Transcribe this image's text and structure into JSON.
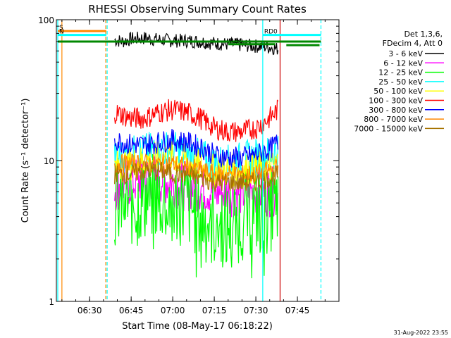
{
  "chart_data": {
    "type": "line",
    "title": "RHESSI Observing Summary Count Rates",
    "xlabel": "Start Time (08-May-17 06:18:22)",
    "ylabel": "Count Rate (s⁻¹ detector⁻¹)",
    "y_scale": "log",
    "ylim": [
      1,
      100
    ],
    "xlim": [
      "06:18",
      "08:00"
    ],
    "x_ticks": [
      "06:30",
      "06:45",
      "07:00",
      "07:15",
      "07:30",
      "07:45"
    ],
    "y_ticks": [
      "1",
      "10",
      "100"
    ],
    "legend_header": [
      "Det 1,3,6,",
      "FDecim 4, Att 0"
    ],
    "legend_position": "right",
    "timestamp": "31-Aug-2022 23:55",
    "series": [
      {
        "name": "3 - 6 keV",
        "color": "#000000",
        "points": [
          [
            "06:39",
            72
          ],
          [
            "06:42",
            70
          ],
          [
            "06:45",
            73
          ],
          [
            "06:50",
            74
          ],
          [
            "06:55",
            72
          ],
          [
            "07:00",
            71
          ],
          [
            "07:05",
            71
          ],
          [
            "07:10",
            70
          ],
          [
            "07:15",
            68
          ],
          [
            "07:20",
            67
          ],
          [
            "07:25",
            66
          ],
          [
            "07:30",
            65
          ],
          [
            "07:35",
            64
          ],
          [
            "07:38",
            62
          ]
        ]
      },
      {
        "name": "6 - 12 keV",
        "color": "#ff00ff",
        "points": [
          [
            "06:39",
            6.5
          ],
          [
            "06:45",
            7
          ],
          [
            "06:50",
            7.5
          ],
          [
            "06:55",
            7.5
          ],
          [
            "07:00",
            7
          ],
          [
            "07:05",
            6.5
          ],
          [
            "07:10",
            6.5
          ],
          [
            "07:15",
            6
          ],
          [
            "07:20",
            6
          ],
          [
            "07:25",
            6
          ],
          [
            "07:30",
            6
          ],
          [
            "07:35",
            6
          ],
          [
            "07:38",
            6
          ]
        ]
      },
      {
        "name": "12 - 25 keV",
        "color": "#00ff00",
        "points": [
          [
            "06:39",
            5
          ],
          [
            "06:45",
            5
          ],
          [
            "06:50",
            5.5
          ],
          [
            "06:55",
            5.5
          ],
          [
            "07:00",
            5
          ],
          [
            "07:05",
            5
          ],
          [
            "07:10",
            4
          ],
          [
            "07:15",
            3.5
          ],
          [
            "07:20",
            3.5
          ],
          [
            "07:25",
            4
          ],
          [
            "07:30",
            4.5
          ],
          [
            "07:35",
            4.5
          ],
          [
            "07:38",
            5
          ]
        ]
      },
      {
        "name": "25 - 50 keV",
        "color": "#00ffff",
        "points": [
          [
            "06:39",
            10
          ],
          [
            "06:45",
            11
          ],
          [
            "06:50",
            11.5
          ],
          [
            "06:55",
            12
          ],
          [
            "07:00",
            12
          ],
          [
            "07:05",
            11
          ],
          [
            "07:10",
            10.5
          ],
          [
            "07:15",
            9.5
          ],
          [
            "07:20",
            9.5
          ],
          [
            "07:25",
            10
          ],
          [
            "07:30",
            10.5
          ],
          [
            "07:35",
            11
          ],
          [
            "07:38",
            12
          ]
        ]
      },
      {
        "name": "50 - 100 keV",
        "color": "#ffff00",
        "points": [
          [
            "06:39",
            9
          ],
          [
            "06:45",
            9.5
          ],
          [
            "06:50",
            10
          ],
          [
            "06:55",
            10.5
          ],
          [
            "07:00",
            10.5
          ],
          [
            "07:05",
            10
          ],
          [
            "07:10",
            9
          ],
          [
            "07:15",
            8.5
          ],
          [
            "07:20",
            8.5
          ],
          [
            "07:25",
            8.5
          ],
          [
            "07:30",
            9
          ],
          [
            "07:35",
            9
          ],
          [
            "07:38",
            9.5
          ]
        ]
      },
      {
        "name": "100 - 300 keV",
        "color": "#ff0000",
        "points": [
          [
            "06:39",
            22
          ],
          [
            "06:45",
            20
          ],
          [
            "06:50",
            20
          ],
          [
            "06:55",
            22
          ],
          [
            "07:00",
            23
          ],
          [
            "07:05",
            22
          ],
          [
            "07:10",
            20
          ],
          [
            "07:15",
            17
          ],
          [
            "07:20",
            16
          ],
          [
            "07:25",
            16
          ],
          [
            "07:30",
            17
          ],
          [
            "07:35",
            20
          ],
          [
            "07:38",
            23
          ]
        ]
      },
      {
        "name": "300 - 800 keV",
        "color": "#0000ff",
        "points": [
          [
            "06:39",
            14
          ],
          [
            "06:45",
            13
          ],
          [
            "06:50",
            13
          ],
          [
            "06:55",
            13.5
          ],
          [
            "07:00",
            14
          ],
          [
            "07:05",
            13.5
          ],
          [
            "07:10",
            12.5
          ],
          [
            "07:15",
            11
          ],
          [
            "07:20",
            10.5
          ],
          [
            "07:25",
            10.5
          ],
          [
            "07:30",
            11
          ],
          [
            "07:35",
            12
          ],
          [
            "07:38",
            13.5
          ]
        ]
      },
      {
        "name": "800 - 7000 keV",
        "color": "#ff8800",
        "points": [
          [
            "06:39",
            9.5
          ],
          [
            "06:45",
            9.5
          ],
          [
            "06:50",
            9.5
          ],
          [
            "06:55",
            9.5
          ],
          [
            "07:00",
            9.5
          ],
          [
            "07:05",
            9
          ],
          [
            "07:10",
            8.5
          ],
          [
            "07:15",
            8
          ],
          [
            "07:20",
            8
          ],
          [
            "07:25",
            8
          ],
          [
            "07:30",
            8
          ],
          [
            "07:35",
            8.5
          ],
          [
            "07:38",
            9
          ]
        ]
      },
      {
        "name": "7000 - 15000 keV",
        "color": "#a67300",
        "points": [
          [
            "06:39",
            8
          ],
          [
            "06:45",
            8
          ],
          [
            "06:50",
            8.5
          ],
          [
            "06:55",
            8.5
          ],
          [
            "07:00",
            8
          ],
          [
            "07:05",
            8
          ],
          [
            "07:10",
            7.5
          ],
          [
            "07:15",
            7
          ],
          [
            "07:20",
            7
          ],
          [
            "07:25",
            7
          ],
          [
            "07:30",
            7
          ],
          [
            "07:35",
            7.5
          ],
          [
            "07:38",
            8
          ]
        ]
      }
    ],
    "markers": {
      "vertical_solid": [
        {
          "time": "06:18:30",
          "color": "#00ffff"
        },
        {
          "time": "06:20:00",
          "color": "#ff8800"
        },
        {
          "time": "07:32:30",
          "color": "#00ffff"
        },
        {
          "time": "07:38:45",
          "color": "#cc0000"
        }
      ],
      "vertical_dashed": [
        {
          "time": "06:35:50",
          "color": "#ff8800"
        },
        {
          "time": "06:36:20",
          "color": "#00ffff"
        },
        {
          "time": "07:53:30",
          "color": "#00ffff"
        }
      ],
      "flag_bars": [
        {
          "label": "S",
          "start": "06:18:30",
          "end": "06:36:00",
          "color": "#ff8800",
          "level": 83
        },
        {
          "label": "N",
          "start": "06:18:30",
          "end": "06:36:00",
          "color": "#00ffff",
          "level": 78
        },
        {
          "label": "RD0",
          "start": "07:32:30",
          "end": "07:53:30",
          "color": "#00ffff",
          "level": 78
        },
        {
          "label": "",
          "start": "06:18:30",
          "end": "07:53:30",
          "color": "#008800",
          "level": 70
        },
        {
          "label": "RD0",
          "start": "07:20:00",
          "end": "07:37:00",
          "color": "#008800",
          "level": 67
        },
        {
          "label": "",
          "start": "07:41:00",
          "end": "07:53:00",
          "color": "#008800",
          "level": 66
        }
      ]
    }
  }
}
